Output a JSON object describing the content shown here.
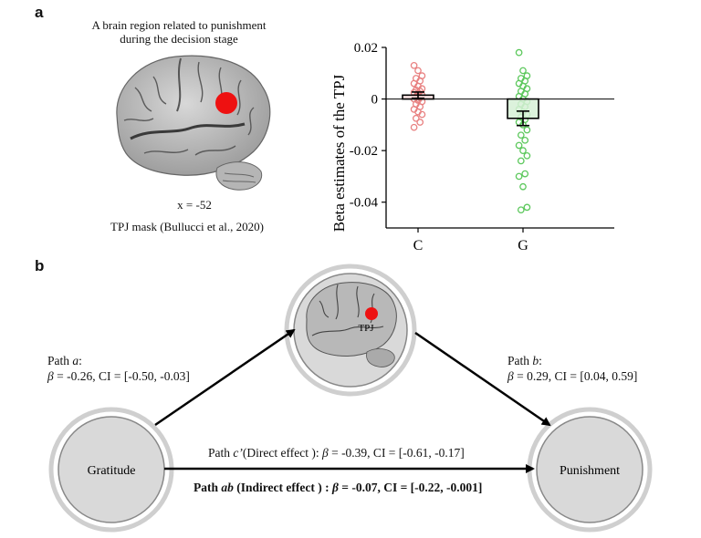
{
  "panel_a": {
    "letter": "a",
    "brain_caption_line1": "A brain region related to punishment",
    "brain_caption_line2": "during the decision stage",
    "slice_label": "x = -52",
    "mask_label": "TPJ mask (Bullucci et al., 2020)"
  },
  "panel_b": {
    "letter": "b",
    "tpj_label": "TPJ",
    "gratitude_label": "Gratitude",
    "punishment_label": "Punishment",
    "path_a_title_prefix": "Path ",
    "path_a_title_letter": "a",
    "path_a_title_suffix": ":",
    "path_a_stats_beta": "β",
    "path_a_stats": " = -0.26, CI = [-0.50, -0.03]",
    "path_b_title_prefix": "Path ",
    "path_b_title_letter": "b",
    "path_b_title_suffix": ":",
    "path_b_stats_beta": "β",
    "path_b_stats": " = 0.29, CI = [0.04, 0.59]",
    "direct_prefix": "Path ",
    "direct_letter": "c’",
    "direct_middle": "(Direct effect ): ",
    "direct_beta": "β",
    "direct_stats": " = -0.39, CI = [-0.61, -0.17]",
    "indirect_prefix": "Path ",
    "indirect_letter": "ab",
    "indirect_middle": " (Indirect effect ) : ",
    "indirect_beta": "β",
    "indirect_stats": " = -0.07, CI = [-0.22, -0.001]"
  },
  "chart_data": {
    "type": "bar",
    "categories": [
      "C",
      "G"
    ],
    "ylabel": "Beta estimates of the TPJ",
    "ylim": [
      -0.05,
      0.02
    ],
    "yticks": [
      0.02,
      0,
      -0.02,
      -0.04
    ],
    "ytick_labels": [
      "0.02",
      "0",
      "-0.02",
      "-0.04"
    ],
    "series": [
      {
        "values": [
          0.0015,
          -0.0075
        ],
        "errors": [
          0.0012,
          0.0028
        ],
        "colors": [
          "#e88080",
          "#5cc85c"
        ],
        "fills": [
          "#fbe3e3",
          "#d6f0d6"
        ],
        "points": [
          [
            0.013,
            0.011,
            0.009,
            0.008,
            0.007,
            0.006,
            0.005,
            0.004,
            0.0035,
            0.003,
            0.0025,
            0.002,
            0.0015,
            0.001,
            0.0005,
            0.0,
            -0.0005,
            -0.001,
            -0.002,
            -0.003,
            -0.004,
            -0.005,
            -0.006,
            -0.0075,
            -0.009,
            -0.011
          ],
          [
            0.018,
            0.011,
            0.009,
            0.008,
            0.007,
            0.006,
            0.005,
            0.004,
            0.003,
            0.002,
            0.001,
            0.0,
            -0.001,
            -0.002,
            -0.003,
            -0.004,
            -0.005,
            -0.006,
            -0.007,
            -0.008,
            -0.009,
            -0.01,
            -0.012,
            -0.014,
            -0.016,
            -0.018,
            -0.02,
            -0.022,
            -0.024,
            -0.029,
            -0.03,
            -0.034,
            -0.042,
            -0.043
          ]
        ]
      }
    ]
  }
}
